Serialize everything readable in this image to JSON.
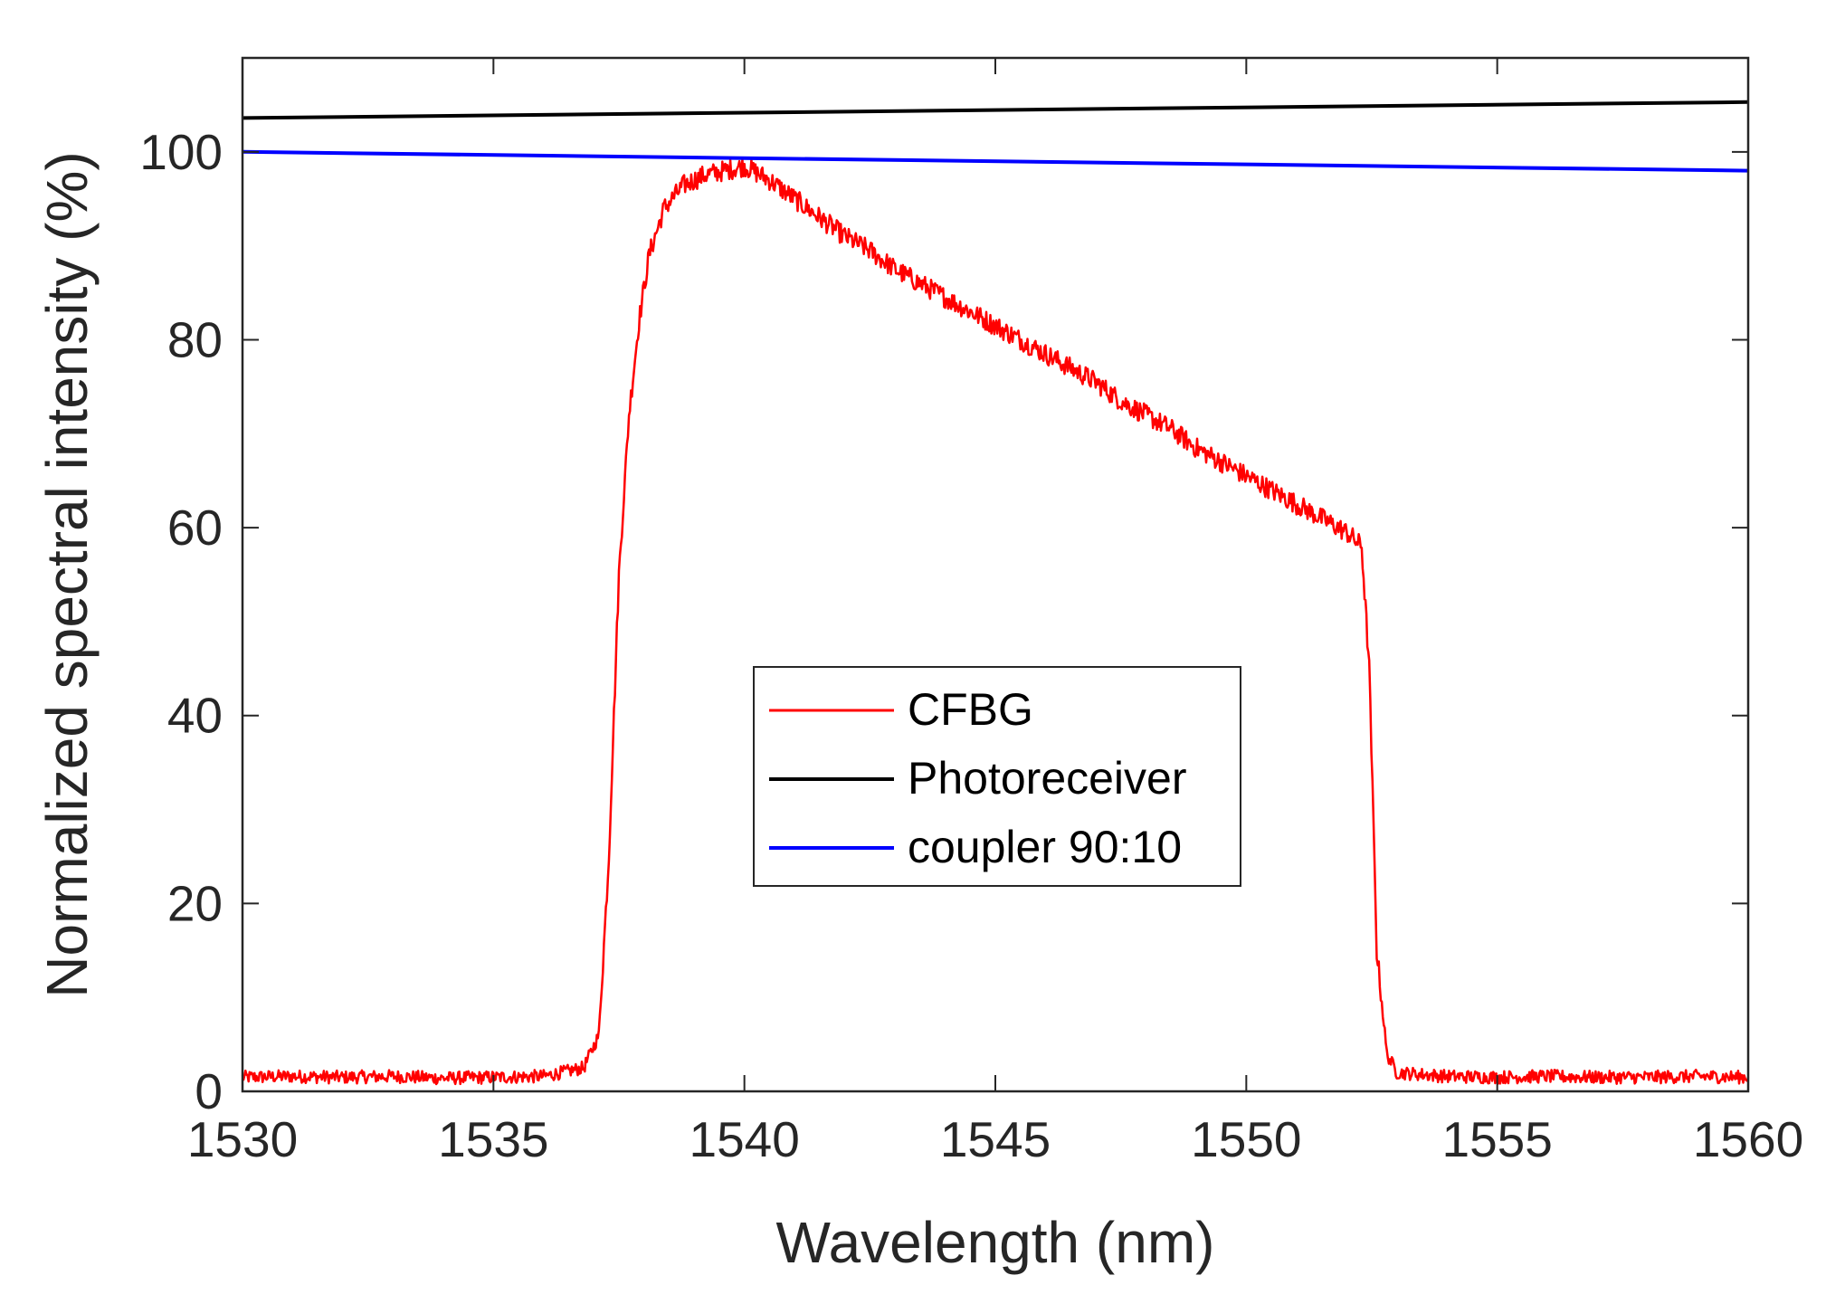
{
  "chart_data": {
    "type": "line",
    "xlabel": "Wavelength (nm)",
    "ylabel": "Normalized spectral intensity (%)",
    "xlim": [
      1530,
      1560
    ],
    "ylim": [
      0,
      110
    ],
    "xticks": [
      1530,
      1535,
      1540,
      1545,
      1550,
      1555,
      1560
    ],
    "yticks": [
      0,
      20,
      40,
      60,
      80,
      100
    ],
    "grid": false,
    "legend_position": "center",
    "series": [
      {
        "name": "CFBG",
        "color": "#ff0000",
        "x": [
          1530,
          1531,
          1532,
          1533,
          1534,
          1535,
          1536,
          1536.8,
          1537.1,
          1537.3,
          1537.5,
          1537.7,
          1537.9,
          1538.1,
          1538.4,
          1538.8,
          1539.2,
          1539.6,
          1540,
          1540.5,
          1541,
          1541.5,
          1542,
          1542.5,
          1543,
          1543.5,
          1544,
          1544.5,
          1545,
          1545.5,
          1546,
          1546.5,
          1547,
          1547.5,
          1548,
          1548.5,
          1549,
          1549.5,
          1550,
          1550.5,
          1551,
          1551.5,
          1552,
          1552.3,
          1552.45,
          1552.6,
          1552.8,
          1553,
          1554,
          1555,
          1556,
          1557,
          1558,
          1559,
          1560
        ],
        "y": [
          1.5,
          1.6,
          1.5,
          1.6,
          1.4,
          1.5,
          1.6,
          2.5,
          6,
          25,
          55,
          72,
          82,
          89,
          94,
          96.5,
          97.5,
          98,
          98.5,
          97,
          95,
          93,
          91,
          89.5,
          87.5,
          86,
          84.5,
          83,
          81.5,
          80,
          78.5,
          77,
          75.5,
          73.5,
          72,
          70.5,
          68.5,
          67,
          65.5,
          64,
          62.5,
          61,
          59.5,
          58,
          45,
          15,
          4,
          2,
          1.6,
          1.5,
          1.6,
          1.5,
          1.5,
          1.6,
          1.5
        ]
      },
      {
        "name": "Photoreceiver",
        "color": "#000000",
        "x": [
          1530,
          1560
        ],
        "y": [
          103.6,
          105.3
        ]
      },
      {
        "name": "coupler 90:10",
        "color": "#0000ff",
        "x": [
          1530,
          1560
        ],
        "y": [
          100,
          98
        ]
      }
    ]
  }
}
